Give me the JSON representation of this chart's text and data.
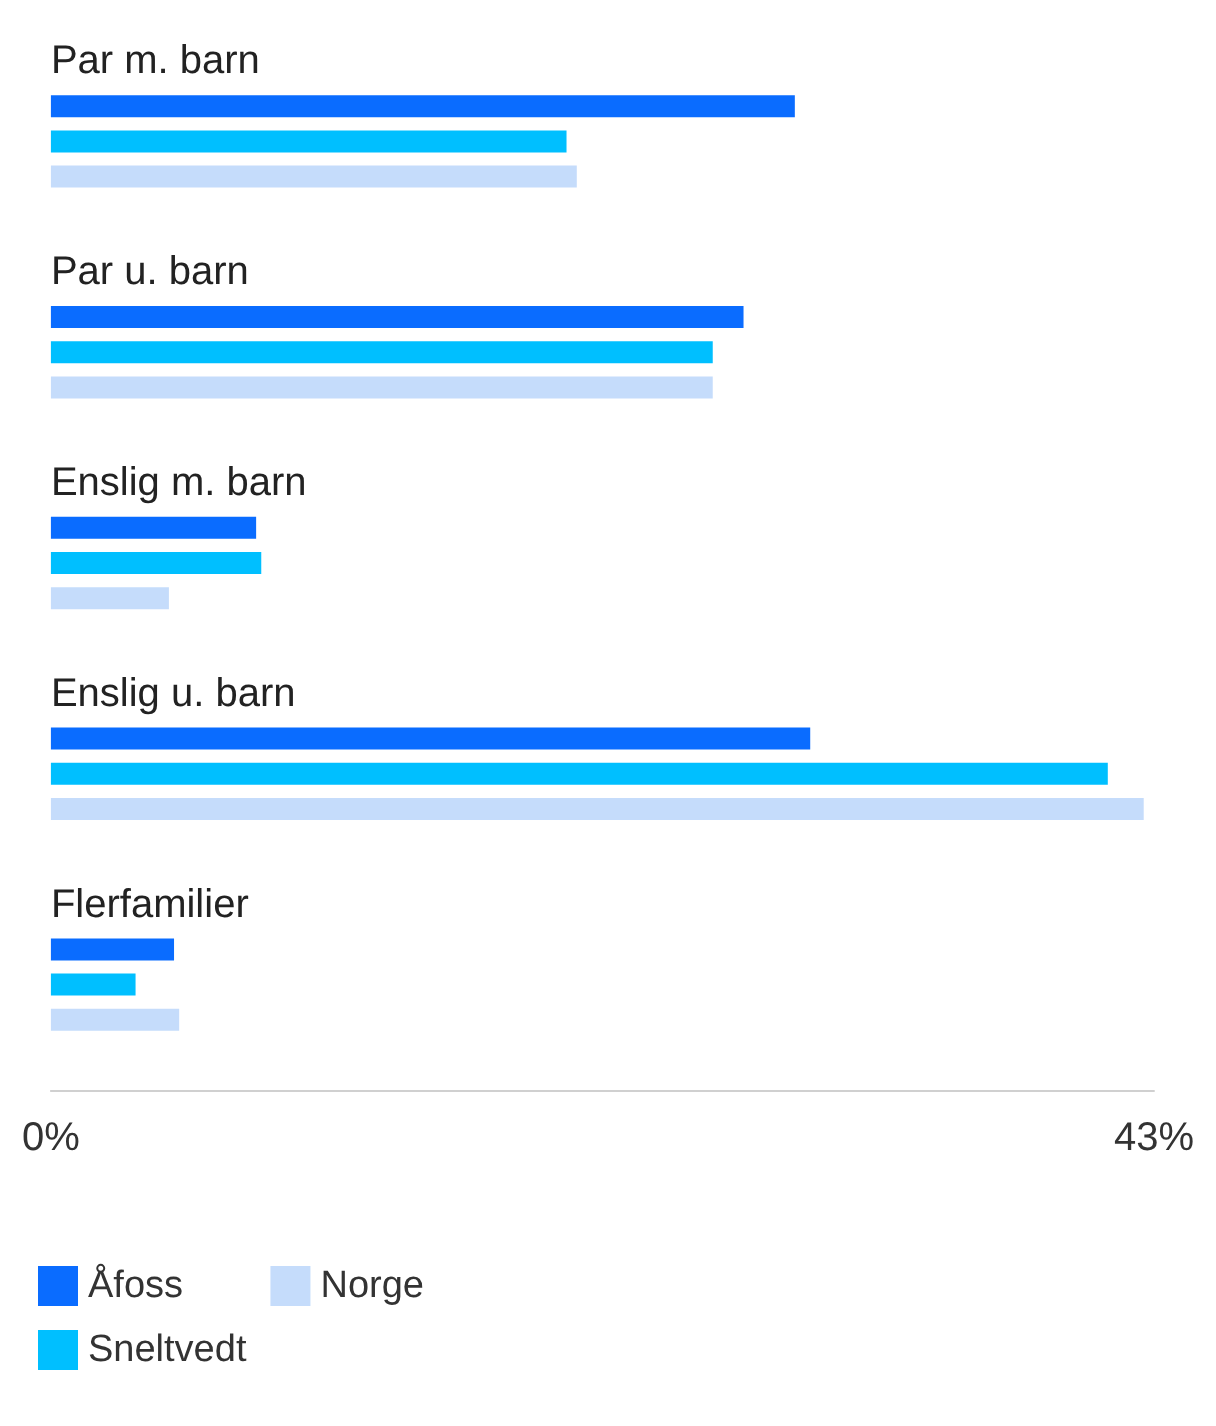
{
  "chart_data": {
    "type": "bar",
    "orientation": "horizontal",
    "categories": [
      "Par m. barn",
      "Par u. barn",
      "Enslig m. barn",
      "Enslig u. barn",
      "Flerfamilier"
    ],
    "series": [
      {
        "name": "Åfoss",
        "color": "#0a6cff",
        "values": [
          29.0,
          27.0,
          8.0,
          29.6,
          4.8
        ]
      },
      {
        "name": "Sneltvedt",
        "color": "#00bfff",
        "values": [
          20.1,
          25.8,
          8.2,
          41.2,
          3.3
        ]
      },
      {
        "name": "Norge",
        "color": "#c5dcfb",
        "values": [
          20.5,
          25.8,
          4.6,
          42.6,
          5.0
        ]
      }
    ],
    "xlim": [
      0,
      43
    ],
    "xticks": [
      {
        "value": 0,
        "label": "0%"
      },
      {
        "value": 43,
        "label": "43%"
      }
    ],
    "grid": false,
    "legend": "bottom left"
  }
}
